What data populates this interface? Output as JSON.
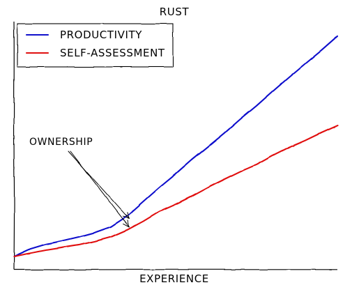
{
  "chart_data": {
    "type": "line",
    "title": "RUST",
    "xlabel": "EXPERIENCE",
    "ylabel": "",
    "grid": false,
    "legend_position": "top-left",
    "xlim": [
      0,
      100
    ],
    "ylim": [
      0,
      100
    ],
    "x": [
      0,
      5,
      10,
      15,
      20,
      25,
      30,
      35,
      40,
      45,
      50,
      55,
      60,
      65,
      70,
      75,
      80,
      85,
      90,
      95,
      100
    ],
    "series": [
      {
        "name": "PRODUCTIVITY",
        "color": "#1010cc",
        "values": [
          0,
          3.5,
          5.8,
          7.4,
          9.2,
          11.3,
          14,
          19,
          25.8,
          32.5,
          38.8,
          45.5,
          51.7,
          58,
          64.7,
          71,
          77.8,
          84.4,
          90.8,
          97.1,
          103.8
        ]
      },
      {
        "name": "SELF-ASSESSMENT",
        "color": "#e01010",
        "values": [
          0,
          1.5,
          3,
          4.2,
          5.4,
          7.1,
          9.2,
          12.5,
          16.6,
          21.2,
          24.6,
          28.4,
          32.5,
          36.3,
          40,
          43.3,
          47.5,
          51.3,
          54.6,
          58.3,
          61.7
        ]
      }
    ],
    "annotations": [
      {
        "text": "OWNERSHIP",
        "targets": [
          {
            "series": "PRODUCTIVITY",
            "x": 35
          },
          {
            "series": "SELF-ASSESSMENT",
            "x": 35
          }
        ]
      }
    ]
  }
}
